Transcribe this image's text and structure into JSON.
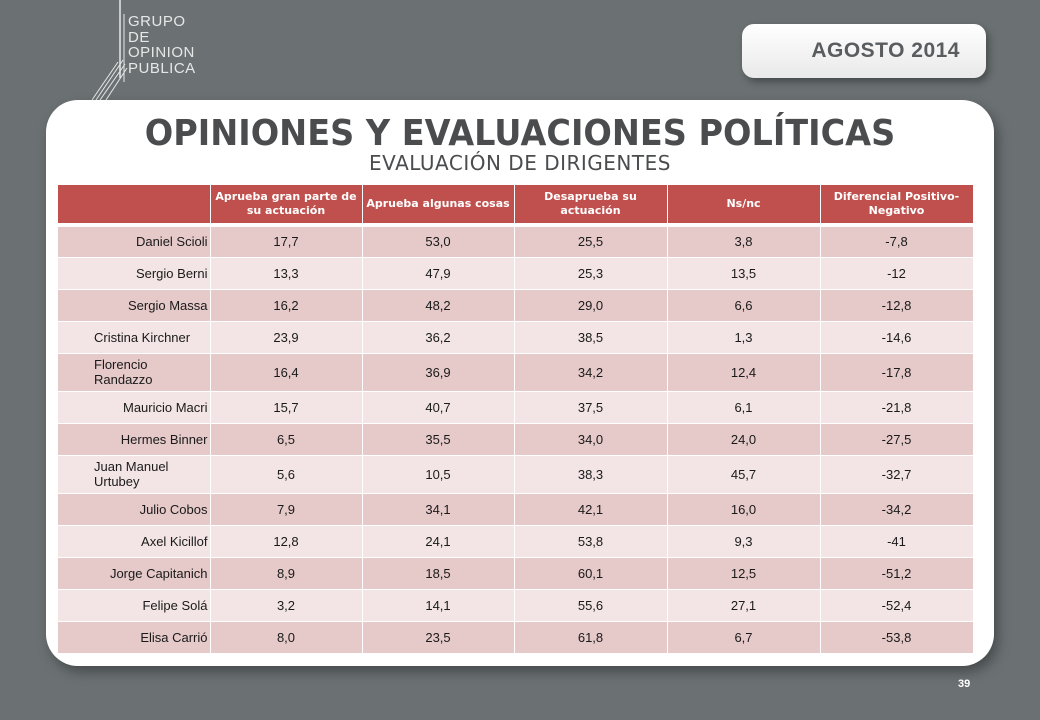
{
  "brand": {
    "logo_lines": [
      "GRUPO",
      "DE",
      "OPINION",
      "PUBLICA"
    ],
    "icon": "slash-lines-icon"
  },
  "date_badge": "AGOSTO  2014",
  "title": "OPINIONES Y EVALUACIONES POLÍTICAS",
  "subtitle": "EVALUACIÓN DE DIRIGENTES",
  "table": {
    "headers": [
      "",
      "Aprueba gran parte de su actuación",
      "Aprueba algunas cosas",
      "Desaprueba su actuación",
      "Ns/nc",
      "Diferencial Positivo-Negativo"
    ],
    "rows": [
      {
        "name": "Daniel Scioli",
        "values": [
          "17,7",
          "53,0",
          "25,5",
          "3,8",
          "-7,8"
        ]
      },
      {
        "name": "Sergio Berni",
        "values": [
          "13,3",
          "47,9",
          "25,3",
          "13,5",
          "-12"
        ]
      },
      {
        "name": "Sergio Massa",
        "values": [
          "16,2",
          "48,2",
          "29,0",
          "6,6",
          "-12,8"
        ]
      },
      {
        "name": "Cristina Kirchner",
        "values": [
          "23,9",
          "36,2",
          "38,5",
          "1,3",
          "-14,6"
        ]
      },
      {
        "name": "Florencio Randazzo",
        "values": [
          "16,4",
          "36,9",
          "34,2",
          "12,4",
          "-17,8"
        ]
      },
      {
        "name": "Mauricio Macri",
        "values": [
          "15,7",
          "40,7",
          "37,5",
          "6,1",
          "-21,8"
        ]
      },
      {
        "name": "Hermes Binner",
        "values": [
          "6,5",
          "35,5",
          "34,0",
          "24,0",
          "-27,5"
        ]
      },
      {
        "name": "Juan Manuel Urtubey",
        "values": [
          "5,6",
          "10,5",
          "38,3",
          "45,7",
          "-32,7"
        ]
      },
      {
        "name": "Julio Cobos",
        "values": [
          "7,9",
          "34,1",
          "42,1",
          "16,0",
          "-34,2"
        ]
      },
      {
        "name": "Axel Kicillof",
        "values": [
          "12,8",
          "24,1",
          "53,8",
          "9,3",
          "-41"
        ]
      },
      {
        "name": "Jorge Capitanich",
        "values": [
          "8,9",
          "18,5",
          "60,1",
          "12,5",
          "-51,2"
        ]
      },
      {
        "name": "Felipe Solá",
        "values": [
          "3,2",
          "14,1",
          "55,6",
          "27,1",
          "-52,4"
        ]
      },
      {
        "name": "Elisa Carrió",
        "values": [
          "8,0",
          "23,5",
          "61,8",
          "6,7",
          "-53,8"
        ]
      }
    ]
  },
  "page_number": "39",
  "colors": {
    "background": "#6b7173",
    "header": "#c0504d",
    "row_odd": "#e6c9c9",
    "row_even": "#f3e5e5"
  }
}
